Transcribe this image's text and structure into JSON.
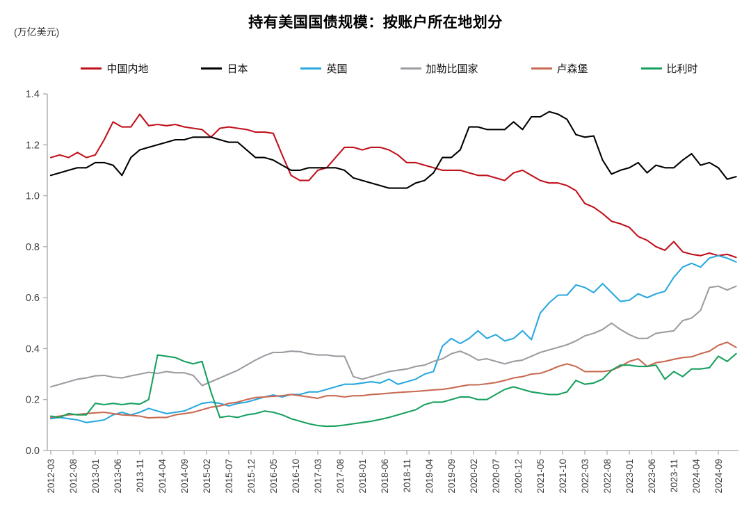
{
  "title": "持有美国国债规模：按账户所在地划分",
  "unit_label": "(万亿美元)",
  "legend": {
    "items": [
      {
        "label": "中国内地",
        "color": "#c0121c"
      },
      {
        "label": "日本",
        "color": "#000000"
      },
      {
        "label": "英国",
        "color": "#29a8e0"
      },
      {
        "label": "加勒比国家",
        "color": "#9c9ca2"
      },
      {
        "label": "卢森堡",
        "color": "#c96a52"
      },
      {
        "label": "比利时",
        "color": "#18a05f"
      }
    ]
  },
  "chart_data": {
    "type": "line",
    "title": "持有美国国债规模：按账户所在地划分",
    "ylabel": "(万亿美元)",
    "ylim": [
      0.0,
      1.4
    ],
    "y_tick_labels": [
      "0.0",
      "0.2",
      "0.4",
      "0.6",
      "0.8",
      "1.0",
      "1.2",
      "1.4"
    ],
    "x_start": "2012-03",
    "x_end": "2025-01",
    "month_step_between_points": 2,
    "x_tick_labels": [
      "2012-03",
      "2012-08",
      "2013-01",
      "2013-06",
      "2013-11",
      "2014-04",
      "2014-09",
      "2015-02",
      "2015-07",
      "2015-12",
      "2016-05",
      "2016-10",
      "2017-03",
      "2017-08",
      "2018-01",
      "2018-06",
      "2018-11",
      "2019-04",
      "2019-09",
      "2020-02",
      "2020-07",
      "2020-12",
      "2021-05",
      "2021-10",
      "2022-03",
      "2022-08",
      "2023-01",
      "2023-06",
      "2023-11",
      "2024-04",
      "2024-09"
    ],
    "grid": false,
    "legend_position": "top",
    "series": [
      {
        "name": "中国内地",
        "color": "#c0121c",
        "values": [
          1.15,
          1.16,
          1.15,
          1.17,
          1.15,
          1.16,
          1.22,
          1.29,
          1.27,
          1.27,
          1.32,
          1.275,
          1.28,
          1.275,
          1.28,
          1.27,
          1.265,
          1.26,
          1.23,
          1.265,
          1.27,
          1.265,
          1.26,
          1.25,
          1.25,
          1.245,
          1.16,
          1.08,
          1.06,
          1.06,
          1.1,
          1.11,
          1.15,
          1.19,
          1.19,
          1.18,
          1.19,
          1.19,
          1.18,
          1.16,
          1.13,
          1.13,
          1.12,
          1.11,
          1.1,
          1.1,
          1.1,
          1.09,
          1.08,
          1.08,
          1.07,
          1.06,
          1.09,
          1.1,
          1.08,
          1.06,
          1.05,
          1.05,
          1.04,
          1.02,
          0.97,
          0.955,
          0.93,
          0.9,
          0.89,
          0.876,
          0.84,
          0.825,
          0.8,
          0.786,
          0.82,
          0.78,
          0.77,
          0.765,
          0.775,
          0.765,
          0.77,
          0.758
        ]
      },
      {
        "name": "日本",
        "color": "#000000",
        "values": [
          1.08,
          1.09,
          1.1,
          1.11,
          1.11,
          1.13,
          1.13,
          1.12,
          1.08,
          1.15,
          1.18,
          1.19,
          1.2,
          1.21,
          1.22,
          1.22,
          1.23,
          1.23,
          1.23,
          1.22,
          1.21,
          1.21,
          1.18,
          1.15,
          1.15,
          1.14,
          1.12,
          1.1,
          1.1,
          1.11,
          1.11,
          1.11,
          1.11,
          1.1,
          1.07,
          1.06,
          1.05,
          1.04,
          1.03,
          1.03,
          1.03,
          1.05,
          1.06,
          1.09,
          1.15,
          1.15,
          1.18,
          1.27,
          1.27,
          1.26,
          1.26,
          1.26,
          1.29,
          1.26,
          1.31,
          1.31,
          1.33,
          1.32,
          1.3,
          1.24,
          1.23,
          1.235,
          1.14,
          1.085,
          1.1,
          1.11,
          1.13,
          1.09,
          1.12,
          1.11,
          1.11,
          1.14,
          1.165,
          1.12,
          1.13,
          1.11,
          1.065,
          1.075
        ]
      },
      {
        "name": "英国",
        "color": "#29a8e0",
        "values": [
          0.125,
          0.13,
          0.125,
          0.12,
          0.11,
          0.115,
          0.12,
          0.14,
          0.15,
          0.14,
          0.15,
          0.165,
          0.155,
          0.145,
          0.15,
          0.155,
          0.17,
          0.185,
          0.19,
          0.185,
          0.175,
          0.185,
          0.19,
          0.2,
          0.21,
          0.218,
          0.21,
          0.22,
          0.22,
          0.23,
          0.23,
          0.24,
          0.25,
          0.26,
          0.26,
          0.265,
          0.27,
          0.265,
          0.28,
          0.26,
          0.27,
          0.28,
          0.3,
          0.31,
          0.41,
          0.44,
          0.42,
          0.44,
          0.47,
          0.44,
          0.455,
          0.43,
          0.44,
          0.47,
          0.435,
          0.54,
          0.58,
          0.61,
          0.61,
          0.65,
          0.64,
          0.62,
          0.655,
          0.62,
          0.585,
          0.59,
          0.615,
          0.6,
          0.615,
          0.625,
          0.68,
          0.72,
          0.735,
          0.72,
          0.755,
          0.765,
          0.755,
          0.74
        ]
      },
      {
        "name": "加勒比国家",
        "color": "#9c9ca2",
        "values": [
          0.25,
          0.26,
          0.27,
          0.28,
          0.285,
          0.293,
          0.295,
          0.288,
          0.285,
          0.293,
          0.3,
          0.307,
          0.303,
          0.31,
          0.305,
          0.305,
          0.295,
          0.255,
          0.27,
          0.285,
          0.3,
          0.315,
          0.335,
          0.355,
          0.372,
          0.385,
          0.385,
          0.39,
          0.388,
          0.38,
          0.375,
          0.375,
          0.37,
          0.37,
          0.29,
          0.28,
          0.29,
          0.3,
          0.31,
          0.315,
          0.32,
          0.33,
          0.335,
          0.35,
          0.36,
          0.38,
          0.39,
          0.375,
          0.355,
          0.36,
          0.35,
          0.34,
          0.35,
          0.355,
          0.37,
          0.385,
          0.395,
          0.405,
          0.415,
          0.43,
          0.45,
          0.46,
          0.475,
          0.5,
          0.475,
          0.455,
          0.44,
          0.44,
          0.46,
          0.465,
          0.47,
          0.51,
          0.52,
          0.55,
          0.64,
          0.645,
          0.63,
          0.645
        ]
      },
      {
        "name": "卢森堡",
        "color": "#c96a52",
        "values": [
          0.13,
          0.135,
          0.14,
          0.142,
          0.145,
          0.148,
          0.15,
          0.145,
          0.14,
          0.138,
          0.135,
          0.128,
          0.13,
          0.13,
          0.14,
          0.145,
          0.15,
          0.16,
          0.17,
          0.175,
          0.185,
          0.19,
          0.2,
          0.208,
          0.21,
          0.213,
          0.215,
          0.22,
          0.215,
          0.21,
          0.205,
          0.215,
          0.215,
          0.21,
          0.215,
          0.215,
          0.22,
          0.222,
          0.225,
          0.228,
          0.23,
          0.232,
          0.235,
          0.238,
          0.24,
          0.245,
          0.252,
          0.258,
          0.258,
          0.262,
          0.267,
          0.275,
          0.285,
          0.29,
          0.3,
          0.303,
          0.315,
          0.33,
          0.34,
          0.33,
          0.31,
          0.31,
          0.31,
          0.315,
          0.33,
          0.35,
          0.36,
          0.33,
          0.345,
          0.35,
          0.358,
          0.365,
          0.368,
          0.38,
          0.39,
          0.413,
          0.425,
          0.405
        ]
      },
      {
        "name": "比利时",
        "color": "#18a05f",
        "values": [
          0.135,
          0.13,
          0.145,
          0.14,
          0.14,
          0.185,
          0.18,
          0.185,
          0.18,
          0.185,
          0.182,
          0.2,
          0.375,
          0.37,
          0.365,
          0.35,
          0.34,
          0.35,
          0.23,
          0.13,
          0.135,
          0.13,
          0.14,
          0.145,
          0.155,
          0.15,
          0.14,
          0.125,
          0.115,
          0.105,
          0.098,
          0.095,
          0.096,
          0.1,
          0.105,
          0.11,
          0.115,
          0.122,
          0.13,
          0.14,
          0.15,
          0.16,
          0.18,
          0.19,
          0.19,
          0.2,
          0.21,
          0.21,
          0.2,
          0.2,
          0.22,
          0.24,
          0.25,
          0.24,
          0.23,
          0.225,
          0.22,
          0.22,
          0.23,
          0.275,
          0.26,
          0.265,
          0.28,
          0.315,
          0.335,
          0.335,
          0.33,
          0.33,
          0.335,
          0.28,
          0.31,
          0.29,
          0.32,
          0.32,
          0.325,
          0.37,
          0.35,
          0.38
        ]
      }
    ]
  }
}
